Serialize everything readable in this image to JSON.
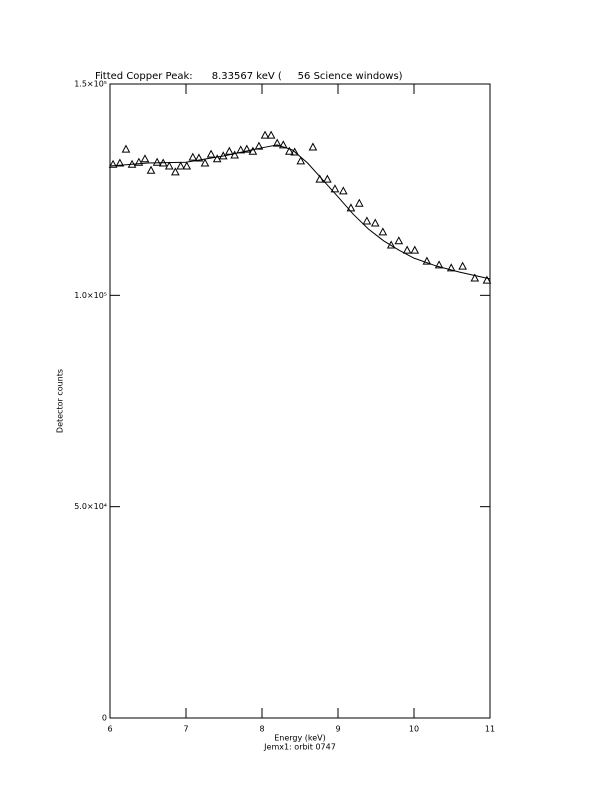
{
  "chart_data": {
    "type": "scatter",
    "title": "Fitted Copper Peak:      8.33567 keV (     56 Science windows)",
    "x_label": "Energy (keV)",
    "subtitle": "Jemx1: orbit 0747",
    "y_label": "Detector counts",
    "xlim": [
      6,
      11
    ],
    "xticks": [
      6,
      7,
      8,
      9,
      10,
      11
    ],
    "ylim": [
      0,
      150000
    ],
    "yticks": [
      0,
      {
        "value": 50000,
        "label": "5.0×10⁴"
      },
      {
        "value": 100000,
        "label": "1.0×10⁵"
      },
      {
        "value": 150000,
        "label": "1.5×10⁵"
      }
    ],
    "series": [
      {
        "marker": "triangle",
        "color": "#000000",
        "x": [
          6.04,
          6.13,
          6.21,
          6.29,
          6.38,
          6.46,
          6.54,
          6.62,
          6.7,
          6.78,
          6.86,
          6.93,
          7.01,
          7.09,
          7.17,
          7.25,
          7.33,
          7.41,
          7.49,
          7.57,
          7.64,
          7.72,
          7.8,
          7.88,
          7.96,
          8.04,
          8.12,
          8.2,
          8.28,
          8.36,
          8.43,
          8.51,
          8.67,
          8.76,
          8.86,
          8.96,
          9.07,
          9.17,
          9.28,
          9.38,
          9.49,
          9.59,
          9.7,
          9.8,
          9.91,
          10.01,
          10.17,
          10.33,
          10.49,
          10.64,
          10.8,
          10.96
        ],
        "values": [
          131000,
          131300,
          134600,
          131000,
          131500,
          132300,
          129600,
          131500,
          131300,
          130600,
          129200,
          130600,
          130600,
          132700,
          132500,
          131300,
          133400,
          132300,
          133000,
          134100,
          133200,
          134400,
          134600,
          134100,
          135300,
          137900,
          137900,
          136000,
          135600,
          134100,
          133900,
          131800,
          135100,
          127500,
          127500,
          125200,
          124700,
          120700,
          121800,
          117600,
          117100,
          115000,
          111900,
          112900,
          110700,
          110700,
          108100,
          107200,
          106500,
          106900,
          104100,
          103600
        ]
      },
      {
        "marker": "line",
        "color": "#000000",
        "x": [
          6.0,
          6.5,
          7.0,
          7.5,
          8.0,
          8.2,
          8.4,
          8.6,
          8.8,
          9.0,
          9.2,
          9.4,
          9.6,
          9.8,
          10.0,
          10.3,
          10.6,
          11.0
        ],
        "values": [
          130600,
          131300,
          131500,
          133000,
          134900,
          135600,
          134400,
          131300,
          127300,
          123300,
          119200,
          115700,
          112900,
          110700,
          108800,
          106900,
          105500,
          103900
        ]
      }
    ]
  }
}
